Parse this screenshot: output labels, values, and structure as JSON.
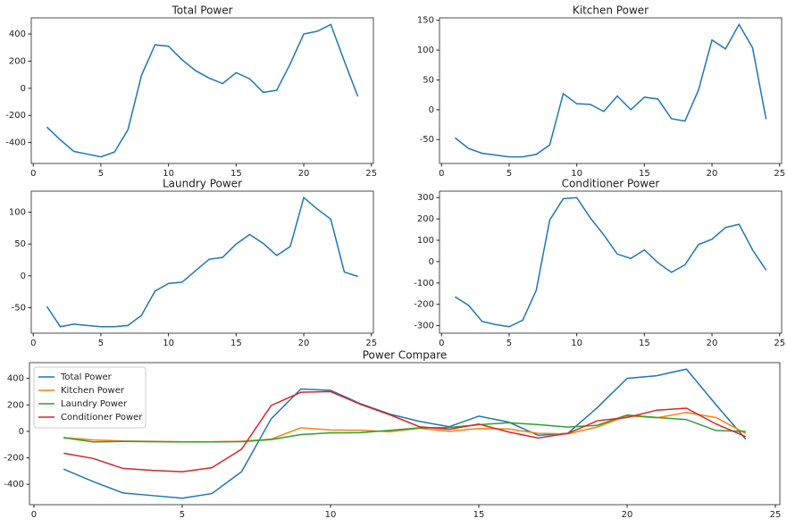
{
  "chart_data": [
    {
      "type": "line",
      "title": "Total Power",
      "color": "#1f77b4",
      "x": [
        1,
        2,
        3,
        4,
        5,
        6,
        7,
        8,
        9,
        10,
        11,
        12,
        13,
        14,
        15,
        16,
        17,
        18,
        19,
        20,
        21,
        22,
        23,
        24
      ],
      "values": [
        -285,
        -380,
        -465,
        -485,
        -505,
        -470,
        -305,
        95,
        320,
        310,
        210,
        130,
        75,
        35,
        115,
        70,
        -30,
        -15,
        180,
        400,
        420,
        470,
        200,
        -60
      ],
      "xlim": [
        -0.15,
        25.15
      ],
      "xticks": [
        0,
        5,
        10,
        15,
        20,
        25
      ],
      "ylim": [
        -553.75,
        518.75
      ],
      "yticks": [
        -400,
        -200,
        0,
        200,
        400
      ]
    },
    {
      "type": "line",
      "title": "Kitchen Power",
      "color": "#1f77b4",
      "x": [
        1,
        2,
        3,
        4,
        5,
        6,
        7,
        8,
        9,
        10,
        11,
        12,
        13,
        14,
        15,
        16,
        17,
        18,
        19,
        20,
        21,
        22,
        23,
        24
      ],
      "values": [
        -47,
        -65,
        -73,
        -76,
        -79,
        -79,
        -75,
        -59,
        27,
        10,
        9,
        -3,
        23,
        0,
        21,
        18,
        -15,
        -19,
        33,
        117,
        102,
        143,
        104,
        -16
      ],
      "xlim": [
        -0.15,
        25.15
      ],
      "xticks": [
        0,
        5,
        10,
        15,
        20,
        25
      ],
      "ylim": [
        -90.1,
        154.1
      ],
      "yticks": [
        -50,
        0,
        50,
        100,
        150
      ]
    },
    {
      "type": "line",
      "title": "Laundry Power",
      "color": "#1f77b4",
      "x": [
        1,
        2,
        3,
        4,
        5,
        6,
        7,
        8,
        9,
        10,
        11,
        12,
        13,
        14,
        15,
        16,
        17,
        18,
        19,
        20,
        21,
        22,
        23,
        24
      ],
      "values": [
        -48,
        -80,
        -76,
        -78,
        -80,
        -80,
        -78,
        -62,
        -24,
        -12,
        -10,
        8,
        26,
        29,
        50,
        65,
        51,
        32,
        46,
        123,
        105,
        89,
        6,
        -1
      ],
      "xlim": [
        -0.15,
        25.15
      ],
      "xticks": [
        0,
        5,
        10,
        15,
        20,
        25
      ],
      "ylim": [
        -90.15,
        133.15
      ],
      "yticks": [
        -50,
        0,
        50,
        100
      ]
    },
    {
      "type": "line",
      "title": "Conditioner Power",
      "color": "#1f77b4",
      "x": [
        1,
        2,
        3,
        4,
        5,
        6,
        7,
        8,
        9,
        10,
        11,
        12,
        13,
        14,
        15,
        16,
        17,
        18,
        19,
        20,
        21,
        22,
        23,
        24
      ],
      "values": [
        -165,
        -205,
        -280,
        -295,
        -305,
        -275,
        -135,
        195,
        295,
        300,
        205,
        125,
        35,
        15,
        55,
        -5,
        -50,
        -15,
        80,
        105,
        160,
        175,
        55,
        -40
      ],
      "xlim": [
        -0.15,
        25.15
      ],
      "xticks": [
        0,
        5,
        10,
        15,
        20,
        25
      ],
      "ylim": [
        -335.25,
        330.25
      ],
      "yticks": [
        -300,
        -200,
        -100,
        0,
        100,
        200,
        300
      ]
    },
    {
      "type": "line",
      "title": "Power Compare",
      "legend": "upper left",
      "x": [
        1,
        2,
        3,
        4,
        5,
        6,
        7,
        8,
        9,
        10,
        11,
        12,
        13,
        14,
        15,
        16,
        17,
        18,
        19,
        20,
        21,
        22,
        23,
        24
      ],
      "series": [
        {
          "name": "Total Power",
          "color": "#1f77b4",
          "values": [
            -285,
            -380,
            -465,
            -485,
            -505,
            -470,
            -305,
            95,
            320,
            310,
            210,
            130,
            75,
            35,
            115,
            70,
            -30,
            -15,
            180,
            400,
            420,
            470,
            200,
            -60
          ]
        },
        {
          "name": "Kitchen Power",
          "color": "#ff7f0e",
          "values": [
            -47,
            -65,
            -73,
            -76,
            -79,
            -79,
            -75,
            -59,
            27,
            10,
            9,
            -3,
            23,
            0,
            21,
            18,
            -15,
            -19,
            33,
            117,
            102,
            143,
            104,
            -16
          ]
        },
        {
          "name": "Laundry Power",
          "color": "#2ca02c",
          "values": [
            -48,
            -80,
            -76,
            -78,
            -80,
            -80,
            -78,
            -62,
            -24,
            -12,
            -10,
            8,
            26,
            29,
            50,
            65,
            51,
            32,
            46,
            123,
            105,
            89,
            6,
            -1
          ]
        },
        {
          "name": "Conditioner Power",
          "color": "#d62728",
          "values": [
            -165,
            -205,
            -280,
            -295,
            -305,
            -275,
            -135,
            195,
            295,
            300,
            205,
            125,
            35,
            15,
            55,
            -5,
            -50,
            -15,
            80,
            105,
            160,
            175,
            55,
            -40
          ]
        }
      ],
      "xlim": [
        -0.15,
        25.15
      ],
      "xticks": [
        0,
        5,
        10,
        15,
        20,
        25
      ],
      "ylim": [
        -553.75,
        518.75
      ],
      "yticks": [
        -400,
        -200,
        0,
        200,
        400
      ]
    }
  ]
}
